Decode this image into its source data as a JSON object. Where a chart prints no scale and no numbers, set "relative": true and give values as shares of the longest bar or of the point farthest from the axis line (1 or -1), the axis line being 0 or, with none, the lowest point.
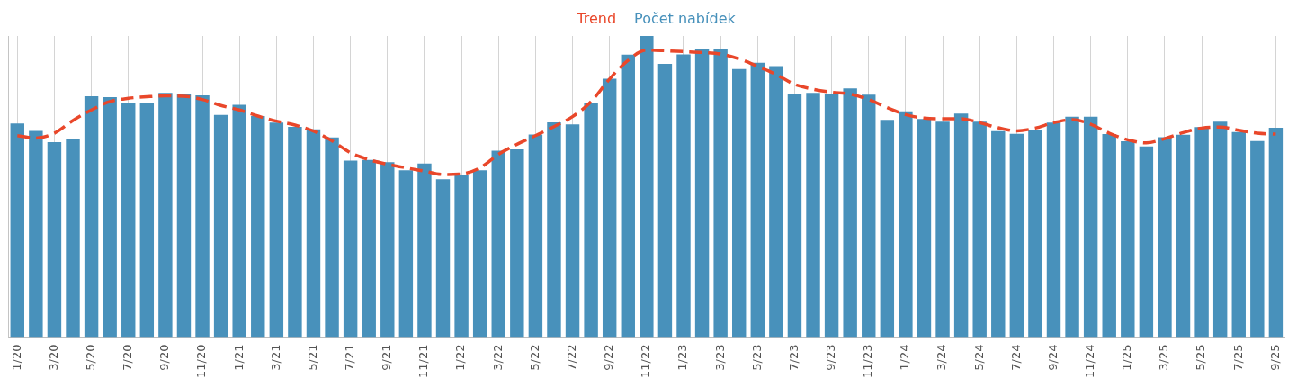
{
  "chart_data": {
    "type": "bar",
    "relative": true,
    "legend": "top",
    "grid": "x",
    "categories": [
      "1/20",
      null,
      "3/20",
      null,
      "5/20",
      null,
      "7/20",
      null,
      "9/20",
      null,
      "11/20",
      null,
      "1/21",
      null,
      "3/21",
      null,
      "5/21",
      null,
      "7/21",
      null,
      "9/21",
      null,
      "11/21",
      null,
      "1/22",
      null,
      "3/22",
      null,
      "5/22",
      null,
      "7/22",
      null,
      "9/22",
      null,
      "11/22",
      null,
      "1/23",
      null,
      "3/23",
      null,
      "5/23",
      null,
      "7/23",
      null,
      "9/23",
      null,
      "11/23",
      null,
      "1/24",
      null,
      "3/24",
      null,
      "5/24",
      null,
      "7/24",
      null,
      "9/24",
      null,
      "11/24",
      null,
      "1/25",
      null,
      "3/25",
      null,
      "5/25",
      null,
      "7/25",
      null,
      "9/25"
    ],
    "series": [
      {
        "name": "Trend",
        "type": "line",
        "color": "#e9472a",
        "line_style": "dashed",
        "marker": "none",
        "values": [
          0.669,
          0.661,
          0.677,
          0.719,
          0.754,
          0.782,
          0.793,
          0.798,
          0.801,
          0.8,
          0.789,
          0.769,
          0.754,
          0.734,
          0.717,
          0.704,
          0.684,
          0.652,
          0.612,
          0.589,
          0.574,
          0.562,
          0.551,
          0.54,
          0.542,
          0.562,
          0.607,
          0.64,
          0.669,
          0.699,
          0.732,
          0.782,
          0.857,
          0.919,
          0.953,
          0.951,
          0.948,
          0.945,
          0.94,
          0.924,
          0.899,
          0.872,
          0.839,
          0.823,
          0.813,
          0.807,
          0.789,
          0.762,
          0.739,
          0.727,
          0.725,
          0.725,
          0.712,
          0.695,
          0.685,
          0.694,
          0.712,
          0.722,
          0.707,
          0.677,
          0.655,
          0.645,
          0.659,
          0.679,
          0.694,
          0.697,
          0.687,
          0.677,
          0.674
        ]
      },
      {
        "name": "Počet nabídek",
        "color": "#4891bb",
        "values": [
          0.709,
          0.685,
          0.647,
          0.656,
          0.8,
          0.797,
          0.779,
          0.779,
          0.811,
          0.808,
          0.803,
          0.738,
          0.771,
          0.734,
          0.712,
          0.698,
          0.69,
          0.663,
          0.586,
          0.588,
          0.581,
          0.554,
          0.576,
          0.524,
          0.537,
          0.554,
          0.619,
          0.623,
          0.673,
          0.713,
          0.706,
          0.778,
          0.858,
          0.938,
          1,
          0.907,
          0.939,
          0.958,
          0.956,
          0.89,
          0.911,
          0.9,
          0.809,
          0.811,
          0.809,
          0.826,
          0.805,
          0.721,
          0.75,
          0.724,
          0.715,
          0.742,
          0.715,
          0.684,
          0.675,
          0.688,
          0.712,
          0.732,
          0.732,
          0.674,
          0.65,
          0.633,
          0.664,
          0.672,
          0.697,
          0.715,
          0.681,
          0.651,
          0.695
        ]
      }
    ]
  }
}
